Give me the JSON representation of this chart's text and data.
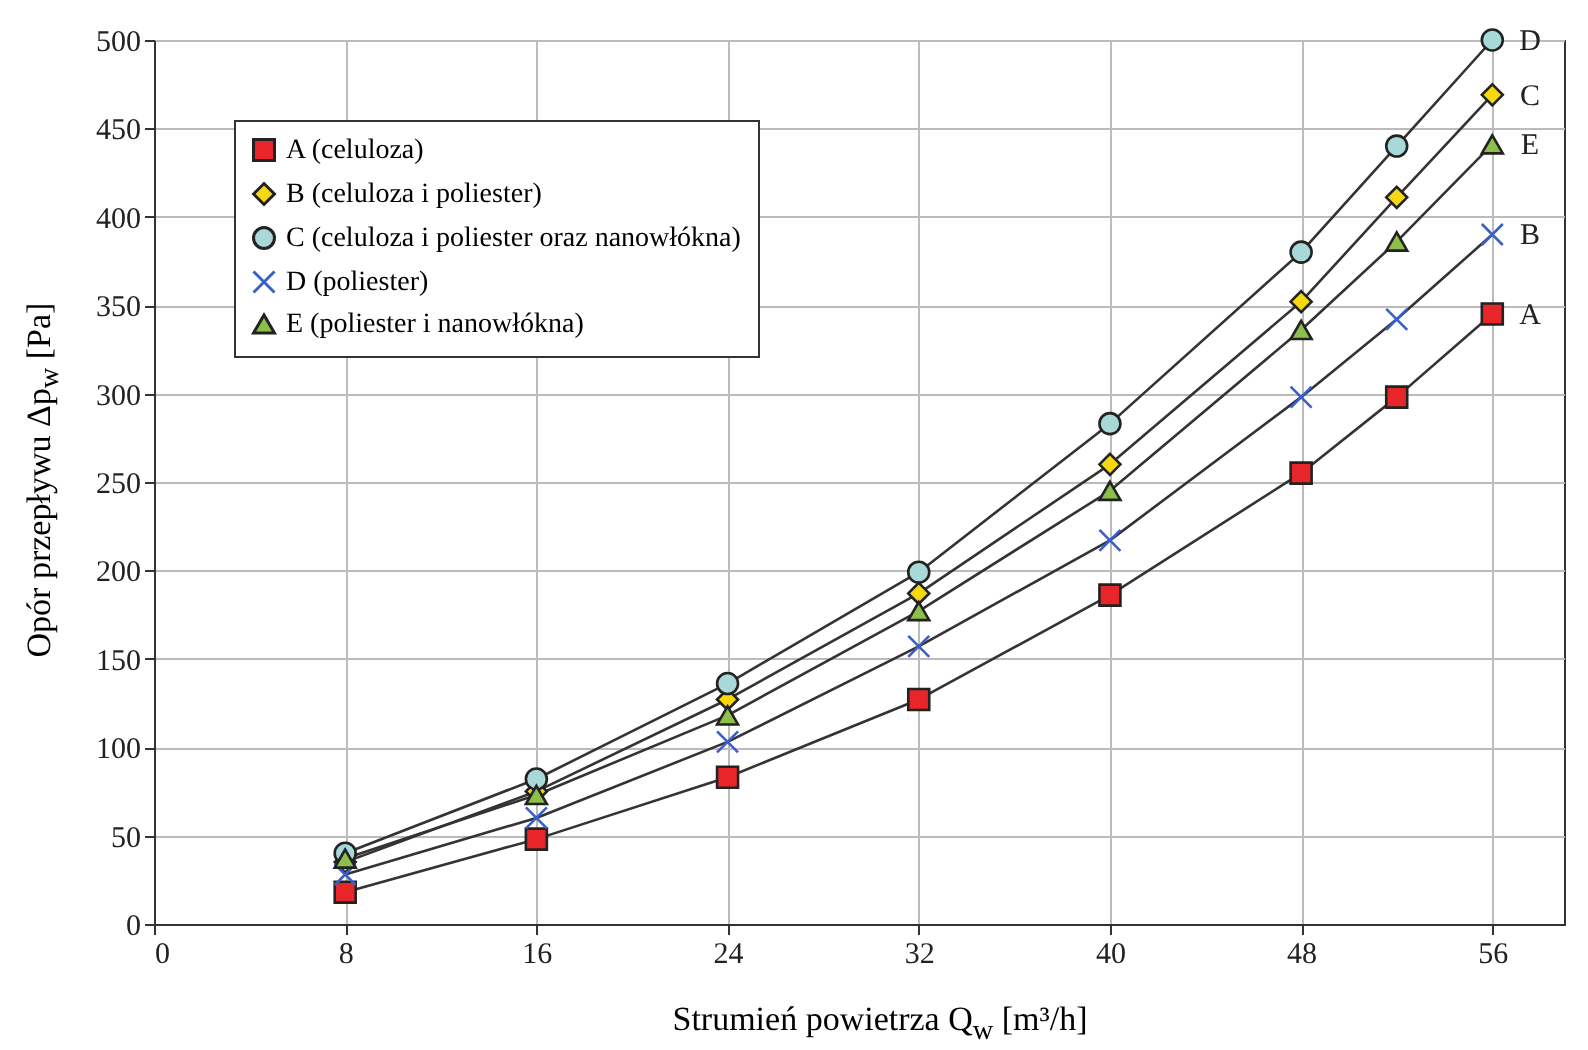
{
  "chart_data": {
    "type": "line",
    "xlabel": "Strumień powietrza Q$_{w}$ [m³/h]",
    "ylabel": "Opór przepływu Δp$_{w}$ [Pa]",
    "x": [
      8,
      16,
      24,
      32,
      40,
      48,
      52,
      56
    ],
    "series": [
      {
        "name": "A (celuloza)",
        "color": "#e8262a",
        "marker": "square",
        "values": [
          18,
          48,
          83,
          127,
          186,
          255,
          298,
          345
        ]
      },
      {
        "name": "B (celuloza i poliester)",
        "color": "#f5d80f",
        "marker": "diamond",
        "values": [
          35,
          75,
          127,
          187,
          260,
          352,
          411,
          469
        ]
      },
      {
        "name": "C (celuloza i poliester oraz nanowłókna)",
        "color": "#a8d8d8",
        "marker": "circle",
        "values": [
          40,
          82,
          136,
          199,
          283,
          380,
          440,
          500
        ]
      },
      {
        "name": "D (poliester)",
        "color": "#3a5fc8",
        "marker": "cross",
        "values": [
          28,
          60,
          103,
          157,
          217,
          298,
          342,
          390
        ]
      },
      {
        "name": "E (poliester i nanowłókna)",
        "color": "#8cc04a",
        "marker": "triangle",
        "values": [
          37,
          73,
          118,
          177,
          245,
          336,
          386,
          441
        ]
      }
    ],
    "annotations": [
      "D",
      "C",
      "E",
      "B",
      "A"
    ],
    "xlim": [
      0,
      59
    ],
    "xticks": [
      0,
      8,
      16,
      24,
      32,
      40,
      48,
      56
    ],
    "ylim": [
      0,
      500
    ],
    "yticks": [
      0,
      50,
      100,
      150,
      200,
      250,
      300,
      350,
      400,
      450,
      500
    ],
    "grid": true,
    "legend": "top left",
    "line_style": "solid"
  }
}
